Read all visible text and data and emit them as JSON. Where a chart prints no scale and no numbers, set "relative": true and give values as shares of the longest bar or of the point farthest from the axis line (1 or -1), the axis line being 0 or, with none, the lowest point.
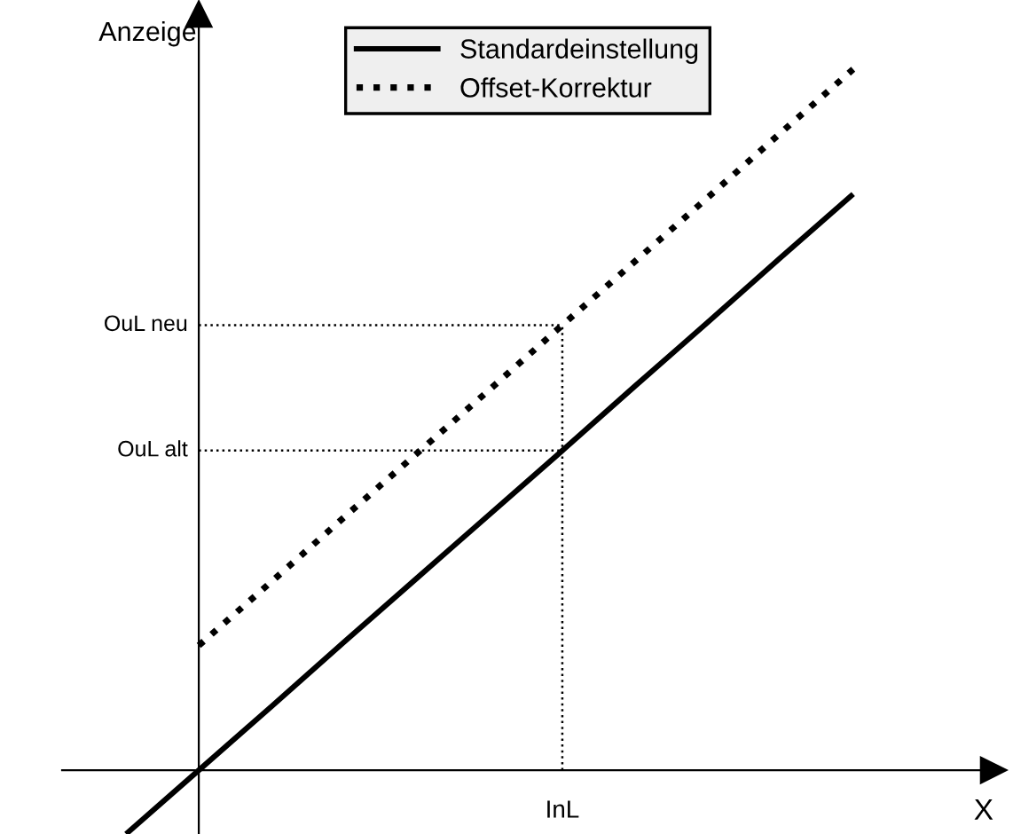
{
  "chart_data": {
    "type": "line",
    "relative": true,
    "xlabel": "X",
    "ylabel": "Anzeige",
    "categories": [
      null,
      null,
      null,
      null,
      null,
      null,
      null,
      null,
      null,
      null,
      null
    ],
    "annotations": [
      "InL"
    ],
    "series": [
      {
        "name": "Standardeinstellung",
        "color": "#000000",
        "line_style": "solid",
        "values": [
          -0.091,
          0,
          0.091,
          0.183,
          0.274,
          0.365,
          0.456,
          0.548,
          0.639,
          0.731,
          0.822
        ]
      },
      {
        "name": "Offset-Korrektur",
        "color": "#000000",
        "line_style": "dotted",
        "values": [
          null,
          0.178,
          0.269,
          0.361,
          0.452,
          0.543,
          0.635,
          0.726,
          0.817,
          0.909,
          1.0
        ]
      }
    ],
    "ref_lines": [
      {
        "axis": "y",
        "value": 0.635,
        "label": "OuL neu",
        "line_style": "dotted",
        "color": "#000000"
      },
      {
        "axis": "y",
        "value": 0.456,
        "label": "OuL alt",
        "line_style": "dotted",
        "color": "#000000"
      }
    ],
    "legend": "top",
    "marker": "none"
  }
}
